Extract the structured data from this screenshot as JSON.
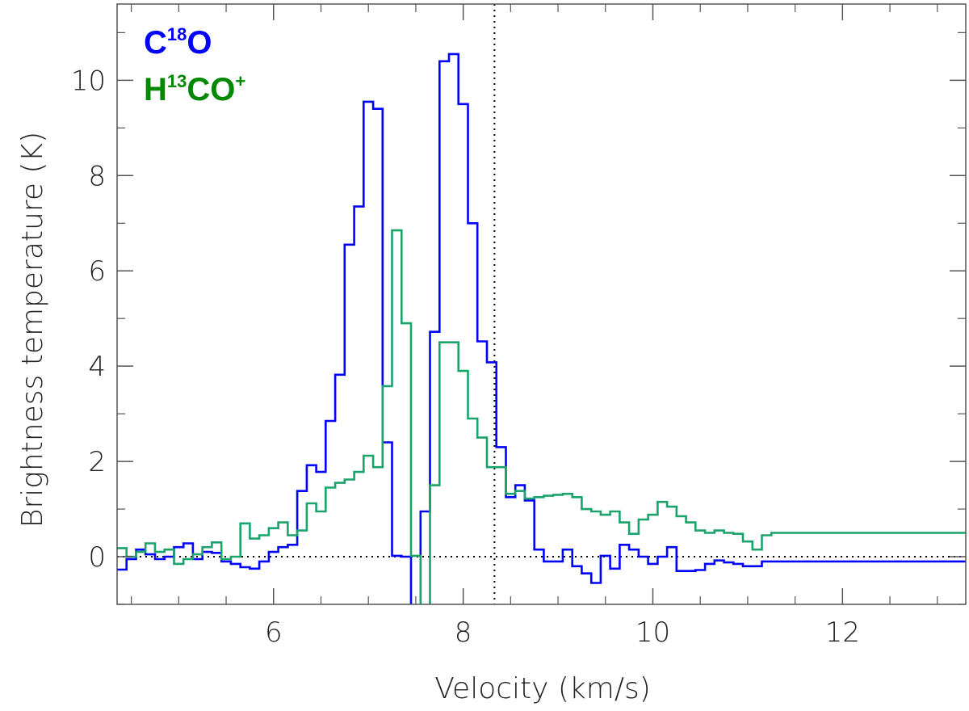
{
  "chart_data": {
    "type": "line",
    "style": "step",
    "xlabel": "Velocity (km/s)",
    "ylabel": "Brightness temperature (K)",
    "xlim": [
      4.35,
      13.3
    ],
    "ylim": [
      -1,
      11.6
    ],
    "xticks": [
      6,
      8,
      10,
      12
    ],
    "xtick_labels": [
      "6",
      "8",
      "10",
      "12"
    ],
    "yticks": [
      0,
      2,
      4,
      6,
      8,
      10
    ],
    "ytick_labels": [
      "0",
      "2",
      "4",
      "6",
      "8",
      "10"
    ],
    "reference_lines": {
      "vertical_x": 8.33,
      "horizontal_y": 0
    },
    "legend": [
      {
        "base": "C",
        "sup": "18",
        "rest": "O",
        "sup2": "",
        "color": "#0000ff"
      },
      {
        "base": "H",
        "sup": "13",
        "rest": "CO",
        "sup2": "+",
        "color": "#008800"
      }
    ],
    "series": [
      {
        "name": "C18O",
        "color": "#0000ff",
        "x": [
          4.4,
          4.5,
          4.6,
          4.7,
          4.8,
          4.9,
          5.0,
          5.1,
          5.2,
          5.3,
          5.4,
          5.5,
          5.6,
          5.7,
          5.8,
          5.9,
          6.0,
          6.1,
          6.2,
          6.3,
          6.4,
          6.5,
          6.6,
          6.7,
          6.8,
          6.9,
          7.0,
          7.1,
          7.2,
          7.3,
          7.4,
          7.5,
          7.6,
          7.7,
          7.8,
          7.9,
          8.0,
          8.1,
          8.2,
          8.3,
          8.4,
          8.5,
          8.6,
          8.7,
          8.8,
          8.9,
          9.0,
          9.1,
          9.2,
          9.3,
          9.4,
          9.5,
          9.6,
          9.7,
          9.8,
          9.9,
          10.0,
          10.1,
          10.2,
          10.3,
          10.4,
          10.5,
          10.6,
          10.7,
          10.8,
          10.9,
          11.0,
          11.1,
          11.2,
          11.3,
          11.4,
          11.5,
          11.6,
          11.7,
          11.8,
          11.9,
          12.0,
          12.1,
          12.2,
          12.3,
          12.4,
          12.5,
          12.6,
          12.7,
          12.8,
          12.9,
          13.0,
          13.1,
          13.2,
          13.3
        ],
        "values": [
          -0.27,
          -0.05,
          0.15,
          0.05,
          -0.05,
          0.0,
          0.2,
          0.28,
          -0.05,
          0.1,
          0.08,
          -0.1,
          -0.15,
          -0.22,
          -0.25,
          -0.1,
          0.1,
          0.2,
          0.25,
          1.38,
          1.92,
          1.78,
          2.85,
          3.82,
          6.55,
          7.35,
          9.55,
          9.4,
          2.4,
          0.02,
          0.0,
          -1.4,
          0.95,
          4.72,
          10.4,
          10.55,
          9.5,
          7.0,
          4.52,
          4.08,
          2.3,
          1.25,
          1.5,
          1.18,
          0.15,
          -0.1,
          -0.1,
          0.15,
          -0.2,
          -0.35,
          -0.55,
          0.02,
          -0.25,
          0.25,
          0.15,
          0.0,
          -0.15,
          0.0,
          0.2,
          -0.3,
          -0.3,
          -0.28,
          -0.15,
          -0.08,
          -0.12,
          -0.15,
          -0.2,
          -0.2,
          -0.1,
          -0.1,
          -0.1,
          -0.1,
          -0.1,
          -0.1,
          -0.1,
          -0.1,
          -0.1,
          -0.1,
          -0.1,
          -0.1,
          -0.1,
          -0.1,
          -0.1,
          -0.1,
          -0.1,
          -0.1,
          -0.1,
          -0.1,
          -0.1,
          -0.1
        ]
      },
      {
        "name": "H13CO+",
        "color": "#1aa36b",
        "x": [
          4.4,
          4.5,
          4.6,
          4.7,
          4.8,
          4.9,
          5.0,
          5.1,
          5.2,
          5.3,
          5.4,
          5.5,
          5.6,
          5.7,
          5.8,
          5.9,
          6.0,
          6.1,
          6.2,
          6.3,
          6.4,
          6.5,
          6.6,
          6.7,
          6.8,
          6.9,
          7.0,
          7.1,
          7.2,
          7.3,
          7.4,
          7.5,
          7.6,
          7.7,
          7.8,
          7.9,
          8.0,
          8.1,
          8.2,
          8.3,
          8.4,
          8.5,
          8.6,
          8.7,
          8.8,
          8.9,
          9.0,
          9.1,
          9.2,
          9.3,
          9.4,
          9.5,
          9.6,
          9.7,
          9.8,
          9.9,
          10.0,
          10.1,
          10.2,
          10.3,
          10.4,
          10.5,
          10.6,
          10.7,
          10.8,
          10.9,
          11.0,
          11.1,
          11.2,
          11.3,
          11.4,
          11.5,
          11.6,
          11.7,
          11.8,
          11.9,
          12.0,
          12.1,
          12.2,
          12.3,
          12.4,
          12.5,
          12.6,
          12.7,
          12.8,
          12.9,
          13.0,
          13.1,
          13.2,
          13.3
        ],
        "values": [
          0.18,
          0.0,
          0.1,
          0.28,
          0.1,
          0.15,
          -0.15,
          -0.05,
          0.05,
          0.2,
          0.3,
          -0.05,
          0.0,
          0.7,
          0.38,
          0.45,
          0.6,
          0.72,
          0.45,
          0.55,
          1.12,
          0.95,
          1.45,
          1.55,
          1.62,
          1.78,
          2.12,
          1.88,
          3.58,
          6.85,
          4.9,
          0.02,
          -1.4,
          1.5,
          4.5,
          4.5,
          3.9,
          2.9,
          2.5,
          1.88,
          1.88,
          1.32,
          1.38,
          1.22,
          1.25,
          1.28,
          1.3,
          1.32,
          1.25,
          1.0,
          0.95,
          0.88,
          0.95,
          0.72,
          0.48,
          0.78,
          0.88,
          1.15,
          1.05,
          0.85,
          0.72,
          0.55,
          0.5,
          0.55,
          0.5,
          0.48,
          0.32,
          0.15,
          0.45,
          0.5,
          0.5,
          0.5,
          0.5,
          0.5,
          0.5,
          0.5,
          0.5,
          0.5,
          0.5,
          0.5,
          0.5,
          0.5,
          0.5,
          0.5,
          0.5,
          0.5,
          0.5,
          0.5,
          0.5,
          0.5
        ]
      }
    ]
  }
}
